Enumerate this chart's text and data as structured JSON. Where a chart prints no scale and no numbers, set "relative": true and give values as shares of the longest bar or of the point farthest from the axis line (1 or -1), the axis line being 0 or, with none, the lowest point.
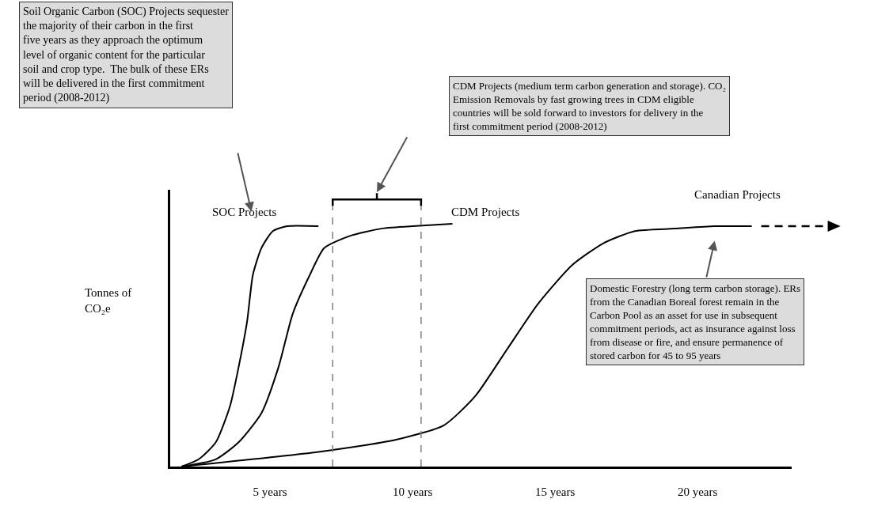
{
  "chart_data": {
    "type": "line",
    "relative": true,
    "ylabel": "Tonnes of CO₂e",
    "xlim": [
      1.5,
      23.3
    ],
    "xticks": [
      {
        "value": 5,
        "label": "5 years"
      },
      {
        "value": 10,
        "label": "10 years"
      },
      {
        "value": 15,
        "label": "15 years"
      },
      {
        "value": 20,
        "label": "20 years"
      }
    ],
    "grid": false,
    "legend": false,
    "marker": "none",
    "line_style": "solid",
    "series": [
      {
        "name": "SOC Projects",
        "color": "#000000",
        "x": [
          1.9,
          2.5,
          3.1,
          3.6,
          3.9,
          4.2,
          4.4,
          4.7,
          5.1,
          5.6,
          6.7
        ],
        "values": [
          0,
          0.03,
          0.1,
          0.25,
          0.41,
          0.6,
          0.79,
          0.9,
          0.97,
          0.99,
          0.99
        ]
      },
      {
        "name": "CDM Projects",
        "color": "#000000",
        "x": [
          1.9,
          3.1,
          3.9,
          4.7,
          5.3,
          5.8,
          6.4,
          6.9,
          7.8,
          8.9,
          10,
          11.4
        ],
        "values": [
          0,
          0.03,
          0.1,
          0.22,
          0.41,
          0.63,
          0.79,
          0.9,
          0.95,
          0.98,
          0.99,
          1
        ]
      },
      {
        "name": "Canadian Projects",
        "color": "#000000",
        "x": [
          1.9,
          6.7,
          9.4,
          11.1,
          12.2,
          13.3,
          14.4,
          15.6,
          16.7,
          17.8,
          19.2,
          20.6,
          21.9
        ],
        "values": [
          0,
          0.06,
          0.11,
          0.17,
          0.29,
          0.48,
          0.67,
          0.83,
          0.92,
          0.97,
          0.98,
          0.99,
          0.99
        ]
      }
    ],
    "ref_lines": [
      {
        "axis": "x",
        "value": 7.2,
        "line_style": "dashed",
        "color": "#808080"
      },
      {
        "axis": "x",
        "value": 10.3,
        "line_style": "dashed",
        "color": "#808080"
      }
    ],
    "annotations": [
      "Soil Organic Carbon (SOC) Projects sequester the majority of their carbon in the first five years as they approach the optimum level of organic content for the particular soil and crop type.  The bulk of these ERs will be delivered in the first commitment period (2008-2012)",
      "CDM Projects (medium term carbon generation and storage). CO₂ Emission Removals by fast growing trees in CDM eligible countries will be sold forward to investors for delivery in the first commitment period (2008-2012)",
      "Domestic Forestry (long term carbon storage). ERs from the Canadian Boreal forest remain in the Carbon Pool as an asset for use in subsequent commitment periods, act as insurance against loss from disease or fire, and ensure permanence of stored carbon for 45 to 95 years"
    ]
  }
}
